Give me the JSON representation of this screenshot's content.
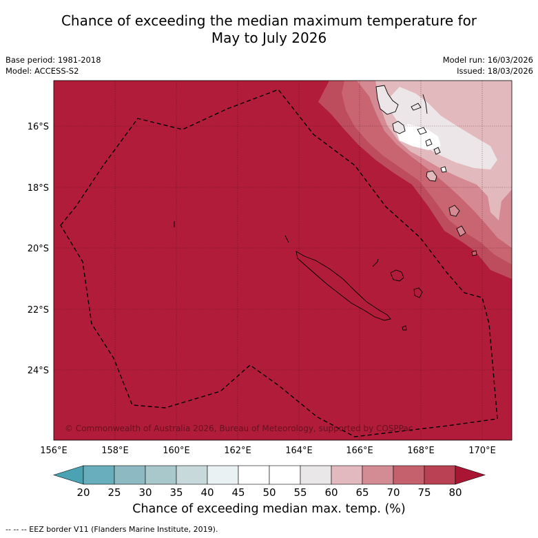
{
  "title": {
    "line1": "Chance of exceeding the median maximum temperature for",
    "line2": "May to July 2026"
  },
  "meta": {
    "base_period": "Base period: 1981-2018",
    "model": "Model: ACCESS-S2",
    "model_run": "Model run: 16/03/2026",
    "issued": "Issued: 18/03/2026"
  },
  "map": {
    "latitude_labels": [
      "16°S",
      "18°S",
      "20°S",
      "22°S",
      "24°S"
    ],
    "longitude_labels": [
      "156°E",
      "158°E",
      "160°E",
      "162°E",
      "164°E",
      "166°E",
      "168°E",
      "170°E"
    ],
    "copyright": "© Commonwealth of Australia 2026, Bureau of Meteorology, supported by COSPPac",
    "background_color": "#b01c39",
    "eez_line_color": "#000000"
  },
  "colorbar": {
    "title": "Chance of exceeding median max. temp. (%)",
    "ticks": [
      "20",
      "25",
      "30",
      "35",
      "40",
      "45",
      "50",
      "55",
      "60",
      "65",
      "70",
      "75",
      "80"
    ],
    "colors": [
      "#4aa2b3",
      "#68aebd",
      "#8db9c3",
      "#a8c8cc",
      "#c7d9da",
      "#e9f1f3",
      "#ffffff",
      "#ffffff",
      "#eae7e8",
      "#e2b9bf",
      "#d48c94",
      "#c5606d",
      "#b94153",
      "#a81634"
    ]
  },
  "footer": {
    "eez_note": "--  --  -- EEZ border V11 (Flanders Marine Institute, 2019)."
  }
}
